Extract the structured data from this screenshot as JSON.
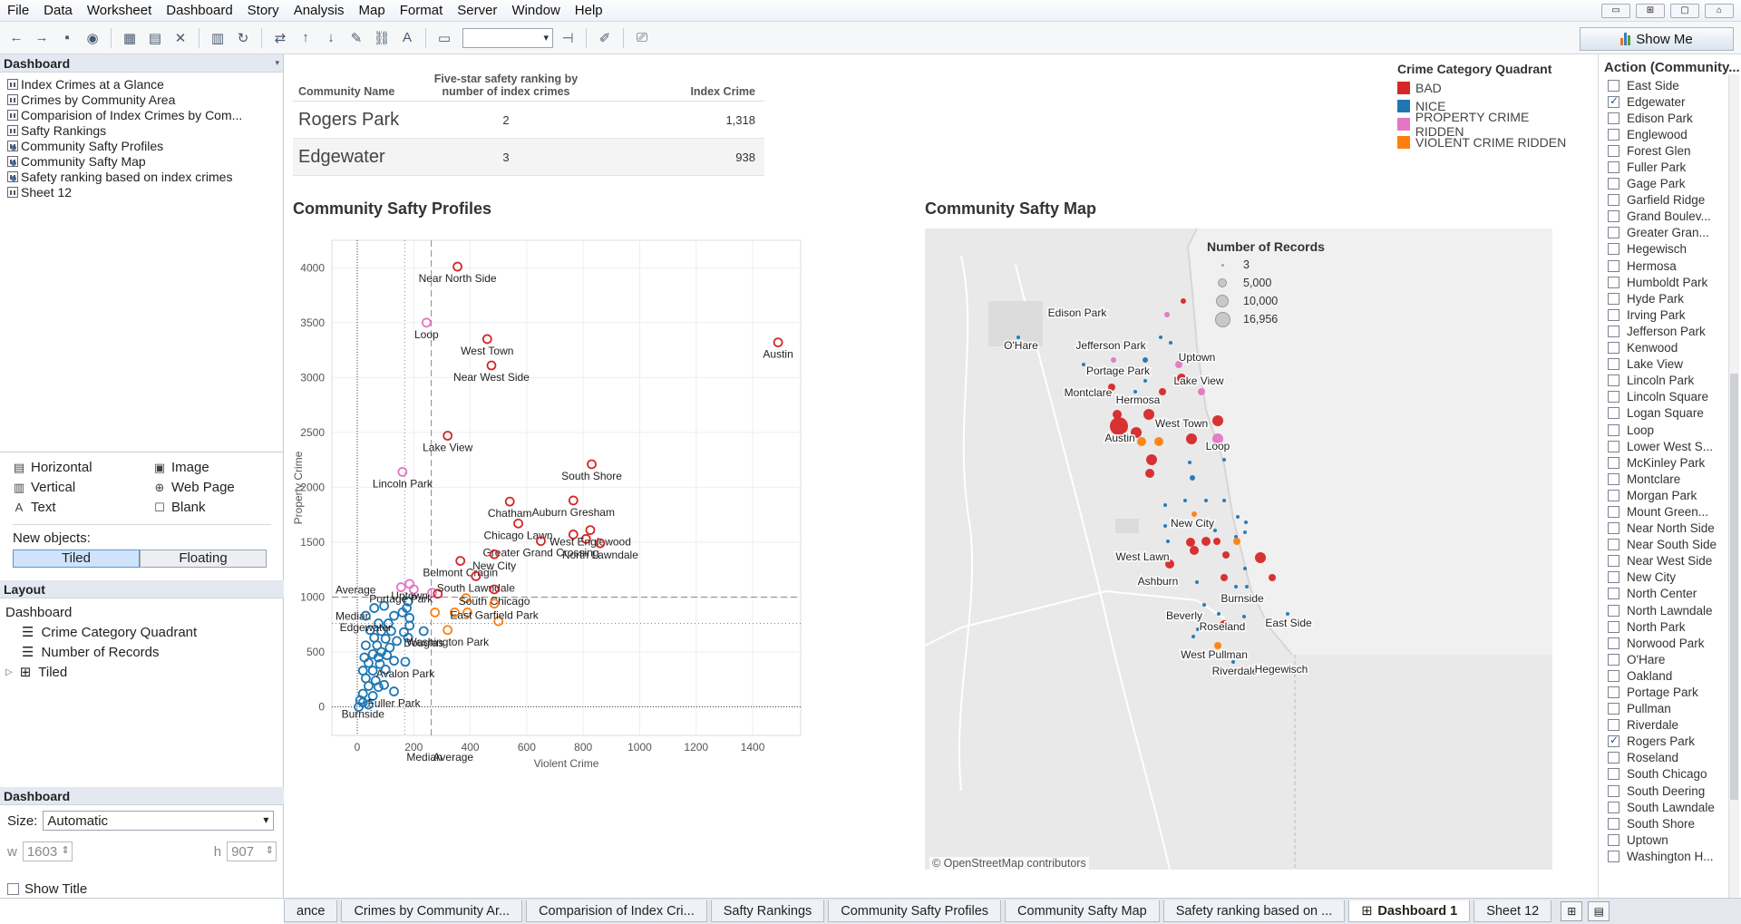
{
  "menu": [
    "File",
    "Data",
    "Worksheet",
    "Dashboard",
    "Story",
    "Analysis",
    "Map",
    "Format",
    "Server",
    "Window",
    "Help"
  ],
  "toolbar": {
    "show_me": "Show Me"
  },
  "left_pane": {
    "header": "Dashboard",
    "sheets": [
      {
        "label": "Index Crimes at a Glance",
        "icon": "bar-chart-icon"
      },
      {
        "label": "Crimes by Community Area",
        "icon": "bar-chart-icon"
      },
      {
        "label": "Comparision of Index Crimes by Com...",
        "icon": "bar-chart-icon"
      },
      {
        "label": "Safty Rankings",
        "icon": "bar-chart-icon"
      },
      {
        "label": "Community Safty Profiles",
        "icon": "map-icon"
      },
      {
        "label": "Community Safty Map",
        "icon": "map-icon"
      },
      {
        "label": "Safety ranking based on index crimes",
        "icon": "map-icon"
      },
      {
        "label": "Sheet 12",
        "icon": "bar-chart-icon"
      }
    ],
    "objects": {
      "items": [
        {
          "label": "Horizontal",
          "icon": "horizontal-icon"
        },
        {
          "label": "Image",
          "icon": "image-icon"
        },
        {
          "label": "Vertical",
          "icon": "vertical-icon"
        },
        {
          "label": "Web Page",
          "icon": "globe-icon"
        },
        {
          "label": "Text",
          "icon": "text-icon"
        },
        {
          "label": "Blank",
          "icon": "blank-icon"
        }
      ],
      "new_objects_label": "New objects:",
      "tiled": "Tiled",
      "floating": "Floating"
    },
    "layout": {
      "header": "Layout",
      "items": [
        "Dashboard",
        "Crime Category Quadrant",
        "Number of Records",
        "Tiled"
      ]
    },
    "dashboard_size": {
      "header": "Dashboard",
      "size_label": "Size:",
      "size_value": "Automatic",
      "w_label": "w",
      "w_value": "1603",
      "h_label": "h",
      "h_value": "907",
      "show_title": "Show Title"
    }
  },
  "crosstab": {
    "headers": [
      "Community Name",
      "Five-star safety ranking by number of index crimes",
      "Index Crime"
    ],
    "rows": [
      [
        "Rogers Park",
        "2",
        "1,318"
      ],
      [
        "Edgewater",
        "3",
        "938"
      ]
    ]
  },
  "legend": {
    "title": "Crime Category Quadrant",
    "items": [
      {
        "label": "BAD",
        "color": "#d62728"
      },
      {
        "label": "NICE",
        "color": "#1f77b4"
      },
      {
        "label": "PROPERTY CRIME RIDDEN",
        "color": "#e377c2"
      },
      {
        "label": "VIOLENT CRIME RIDDEN",
        "color": "#ff7f0e"
      }
    ]
  },
  "scatter": {
    "title": "Community Safty Profiles",
    "xlabel": "Violent Crime",
    "ylabel": "Property Crime",
    "ref_average_label": "Average",
    "ref_median_label": "Median",
    "x_ref_median_label": "Median",
    "x_ref_average_label": "Average"
  },
  "chart_data": {
    "type": "scatter",
    "title": "Community Safty Profiles",
    "xlabel": "Violent Crime",
    "ylabel": "Property Crime",
    "xlim": [
      -90,
      1570
    ],
    "ylim": [
      -260,
      4250
    ],
    "xticks": [
      0,
      200,
      400,
      600,
      800,
      1000,
      1200,
      1400
    ],
    "yticks": [
      0,
      500,
      1000,
      1500,
      2000,
      2500,
      3000,
      3500,
      4000
    ],
    "reference_lines": {
      "y_average": 1000,
      "y_median": 760,
      "x_average": 262,
      "x_median": 168
    },
    "labeled_points": [
      {
        "name": "Near North Side",
        "x": 355,
        "y": 4010,
        "cat": "BAD"
      },
      {
        "name": "Loop",
        "x": 245,
        "y": 3500,
        "cat": "PROPERTY CRIME RIDDEN"
      },
      {
        "name": "West Town",
        "x": 460,
        "y": 3350,
        "cat": "BAD"
      },
      {
        "name": "Austin",
        "x": 1490,
        "y": 3320,
        "cat": "BAD"
      },
      {
        "name": "Near West Side",
        "x": 475,
        "y": 3110,
        "cat": "BAD"
      },
      {
        "name": "Lake View",
        "x": 320,
        "y": 2470,
        "cat": "BAD"
      },
      {
        "name": "South Shore",
        "x": 830,
        "y": 2210,
        "cat": "BAD"
      },
      {
        "name": "Lincoln Park",
        "x": 160,
        "y": 2140,
        "cat": "PROPERTY CRIME RIDDEN"
      },
      {
        "name": "Chatham",
        "x": 540,
        "y": 1870,
        "cat": "BAD"
      },
      {
        "name": "Auburn Gresham",
        "x": 765,
        "y": 1880,
        "cat": "BAD"
      },
      {
        "name": "Chicago Lawn",
        "x": 570,
        "y": 1670,
        "cat": "BAD"
      },
      {
        "name": "West Englewood",
        "x": 825,
        "y": 1610,
        "cat": "BAD"
      },
      {
        "name": "Greater Grand Crossing",
        "x": 650,
        "y": 1510,
        "cat": "BAD"
      },
      {
        "name": "North Lawndale",
        "x": 860,
        "y": 1490,
        "cat": "BAD"
      },
      {
        "name": "Belmont Cragin",
        "x": 365,
        "y": 1330,
        "cat": "BAD"
      },
      {
        "name": "New City",
        "x": 485,
        "y": 1390,
        "cat": "BAD"
      },
      {
        "name": "South Lawndale",
        "x": 420,
        "y": 1190,
        "cat": "BAD"
      },
      {
        "name": "Portage Park",
        "x": 155,
        "y": 1090,
        "cat": "PROPERTY CRIME RIDDEN"
      },
      {
        "name": "Uptown",
        "x": 185,
        "y": 1120,
        "cat": "PROPERTY CRIME RIDDEN"
      },
      {
        "name": "South Chicago",
        "x": 485,
        "y": 1070,
        "cat": "BAD"
      },
      {
        "name": "East Garfield Park",
        "x": 485,
        "y": 940,
        "cat": "VIOLENT CRIME RIDDEN"
      },
      {
        "name": "Washington Park",
        "x": 320,
        "y": 700,
        "cat": "VIOLENT CRIME RIDDEN"
      },
      {
        "name": "Douglas",
        "x": 235,
        "y": 690,
        "cat": "NICE"
      },
      {
        "name": "Avalon Park",
        "x": 170,
        "y": 410,
        "cat": "NICE"
      },
      {
        "name": "Fuller Park",
        "x": 130,
        "y": 140,
        "cat": "NICE"
      },
      {
        "name": "Burnside",
        "x": 20,
        "y": 40,
        "cat": "NICE"
      },
      {
        "name": "Edgewater",
        "x": 30,
        "y": 830,
        "cat": "NICE"
      }
    ],
    "other_points": [
      {
        "x": 265,
        "y": 1040,
        "cat": "PROPERTY CRIME RIDDEN"
      },
      {
        "x": 200,
        "y": 1070,
        "cat": "PROPERTY CRIME RIDDEN"
      },
      {
        "x": 285,
        "y": 1030,
        "cat": "BAD"
      },
      {
        "x": 765,
        "y": 1570,
        "cat": "BAD"
      },
      {
        "x": 810,
        "y": 1530,
        "cat": "BAD"
      },
      {
        "x": 385,
        "y": 990,
        "cat": "VIOLENT CRIME RIDDEN"
      },
      {
        "x": 275,
        "y": 860,
        "cat": "VIOLENT CRIME RIDDEN"
      },
      {
        "x": 345,
        "y": 860,
        "cat": "VIOLENT CRIME RIDDEN"
      },
      {
        "x": 390,
        "y": 860,
        "cat": "VIOLENT CRIME RIDDEN"
      },
      {
        "x": 500,
        "y": 780,
        "cat": "VIOLENT CRIME RIDDEN"
      },
      {
        "x": 180,
        "y": 960,
        "cat": "NICE"
      },
      {
        "x": 175,
        "y": 900,
        "cat": "NICE"
      },
      {
        "x": 160,
        "y": 860,
        "cat": "NICE"
      },
      {
        "x": 130,
        "y": 830,
        "cat": "NICE"
      },
      {
        "x": 95,
        "y": 920,
        "cat": "NICE"
      },
      {
        "x": 60,
        "y": 900,
        "cat": "NICE"
      },
      {
        "x": 185,
        "y": 810,
        "cat": "NICE"
      },
      {
        "x": 110,
        "y": 760,
        "cat": "NICE"
      },
      {
        "x": 75,
        "y": 760,
        "cat": "NICE"
      },
      {
        "x": 45,
        "y": 700,
        "cat": "NICE"
      },
      {
        "x": 85,
        "y": 690,
        "cat": "NICE"
      },
      {
        "x": 120,
        "y": 690,
        "cat": "NICE"
      },
      {
        "x": 165,
        "y": 680,
        "cat": "NICE"
      },
      {
        "x": 185,
        "y": 740,
        "cat": "NICE"
      },
      {
        "x": 60,
        "y": 630,
        "cat": "NICE"
      },
      {
        "x": 100,
        "y": 620,
        "cat": "NICE"
      },
      {
        "x": 140,
        "y": 600,
        "cat": "NICE"
      },
      {
        "x": 180,
        "y": 630,
        "cat": "NICE"
      },
      {
        "x": 30,
        "y": 560,
        "cat": "NICE"
      },
      {
        "x": 70,
        "y": 560,
        "cat": "NICE"
      },
      {
        "x": 115,
        "y": 540,
        "cat": "NICE"
      },
      {
        "x": 85,
        "y": 500,
        "cat": "NICE"
      },
      {
        "x": 55,
        "y": 480,
        "cat": "NICE"
      },
      {
        "x": 25,
        "y": 450,
        "cat": "NICE"
      },
      {
        "x": 75,
        "y": 450,
        "cat": "NICE"
      },
      {
        "x": 105,
        "y": 470,
        "cat": "NICE"
      },
      {
        "x": 40,
        "y": 400,
        "cat": "NICE"
      },
      {
        "x": 80,
        "y": 390,
        "cat": "NICE"
      },
      {
        "x": 130,
        "y": 420,
        "cat": "NICE"
      },
      {
        "x": 20,
        "y": 330,
        "cat": "NICE"
      },
      {
        "x": 55,
        "y": 330,
        "cat": "NICE"
      },
      {
        "x": 100,
        "y": 340,
        "cat": "NICE"
      },
      {
        "x": 30,
        "y": 260,
        "cat": "NICE"
      },
      {
        "x": 65,
        "y": 240,
        "cat": "NICE"
      },
      {
        "x": 40,
        "y": 190,
        "cat": "NICE"
      },
      {
        "x": 75,
        "y": 180,
        "cat": "NICE"
      },
      {
        "x": 20,
        "y": 120,
        "cat": "NICE"
      },
      {
        "x": 55,
        "y": 100,
        "cat": "NICE"
      },
      {
        "x": 95,
        "y": 200,
        "cat": "NICE"
      },
      {
        "x": 10,
        "y": 60,
        "cat": "NICE"
      },
      {
        "x": 40,
        "y": 20,
        "cat": "NICE"
      },
      {
        "x": 5,
        "y": 0,
        "cat": "NICE"
      }
    ]
  },
  "map": {
    "title": "Community Safty Map",
    "size_legend_title": "Number of Records",
    "size_legend": [
      "3",
      "5,000",
      "10,000",
      "16,956"
    ],
    "credit": "© OpenStreetMap contributors",
    "labels": [
      "Edison Park",
      "O'Hare",
      "Jefferson Park",
      "Portage Park",
      "Montclare",
      "Hermosa",
      "Uptown",
      "Lake View",
      "West Town",
      "Austin",
      "Loop",
      "New City",
      "West Lawn",
      "Ashburn",
      "Burnside",
      "Beverly",
      "Roseland",
      "East Side",
      "West Pullman",
      "Riverdale",
      "Hegewisch"
    ]
  },
  "filter": {
    "title": "Action (Community...",
    "items": [
      {
        "label": "East Side",
        "checked": false
      },
      {
        "label": "Edgewater",
        "checked": true
      },
      {
        "label": "Edison Park",
        "checked": false
      },
      {
        "label": "Englewood",
        "checked": false
      },
      {
        "label": "Forest Glen",
        "checked": false
      },
      {
        "label": "Fuller Park",
        "checked": false
      },
      {
        "label": "Gage Park",
        "checked": false
      },
      {
        "label": "Garfield Ridge",
        "checked": false
      },
      {
        "label": "Grand Boulev...",
        "checked": false
      },
      {
        "label": "Greater Gran...",
        "checked": false
      },
      {
        "label": "Hegewisch",
        "checked": false
      },
      {
        "label": "Hermosa",
        "checked": false
      },
      {
        "label": "Humboldt Park",
        "checked": false
      },
      {
        "label": "Hyde Park",
        "checked": false
      },
      {
        "label": "Irving Park",
        "checked": false
      },
      {
        "label": "Jefferson Park",
        "checked": false
      },
      {
        "label": "Kenwood",
        "checked": false
      },
      {
        "label": "Lake View",
        "checked": false
      },
      {
        "label": "Lincoln Park",
        "checked": false
      },
      {
        "label": "Lincoln Square",
        "checked": false
      },
      {
        "label": "Logan Square",
        "checked": false
      },
      {
        "label": "Loop",
        "checked": false
      },
      {
        "label": "Lower West S...",
        "checked": false
      },
      {
        "label": "McKinley Park",
        "checked": false
      },
      {
        "label": "Montclare",
        "checked": false
      },
      {
        "label": "Morgan Park",
        "checked": false
      },
      {
        "label": "Mount Green...",
        "checked": false
      },
      {
        "label": "Near North Side",
        "checked": false
      },
      {
        "label": "Near South Side",
        "checked": false
      },
      {
        "label": "Near West Side",
        "checked": false
      },
      {
        "label": "New City",
        "checked": false
      },
      {
        "label": "North Center",
        "checked": false
      },
      {
        "label": "North Lawndale",
        "checked": false
      },
      {
        "label": "North Park",
        "checked": false
      },
      {
        "label": "Norwood Park",
        "checked": false
      },
      {
        "label": "O'Hare",
        "checked": false
      },
      {
        "label": "Oakland",
        "checked": false
      },
      {
        "label": "Portage Park",
        "checked": false
      },
      {
        "label": "Pullman",
        "checked": false
      },
      {
        "label": "Riverdale",
        "checked": false
      },
      {
        "label": "Rogers Park",
        "checked": true
      },
      {
        "label": "Roseland",
        "checked": false
      },
      {
        "label": "South Chicago",
        "checked": false
      },
      {
        "label": "South Deering",
        "checked": false
      },
      {
        "label": "South Lawndale",
        "checked": false
      },
      {
        "label": "South Shore",
        "checked": false
      },
      {
        "label": "Uptown",
        "checked": false
      },
      {
        "label": "Washington H...",
        "checked": false
      }
    ]
  },
  "tabs": [
    {
      "label": "ance",
      "active": false
    },
    {
      "label": "Crimes by Community Ar...",
      "active": false
    },
    {
      "label": "Comparision of Index Cri...",
      "active": false
    },
    {
      "label": "Safty Rankings",
      "active": false
    },
    {
      "label": "Community Safty Profiles",
      "active": false
    },
    {
      "label": "Community Safty Map",
      "active": false
    },
    {
      "label": "Safety ranking based on ...",
      "active": false
    },
    {
      "label": "Dashboard 1",
      "active": true
    },
    {
      "label": "Sheet 12",
      "active": false
    }
  ]
}
